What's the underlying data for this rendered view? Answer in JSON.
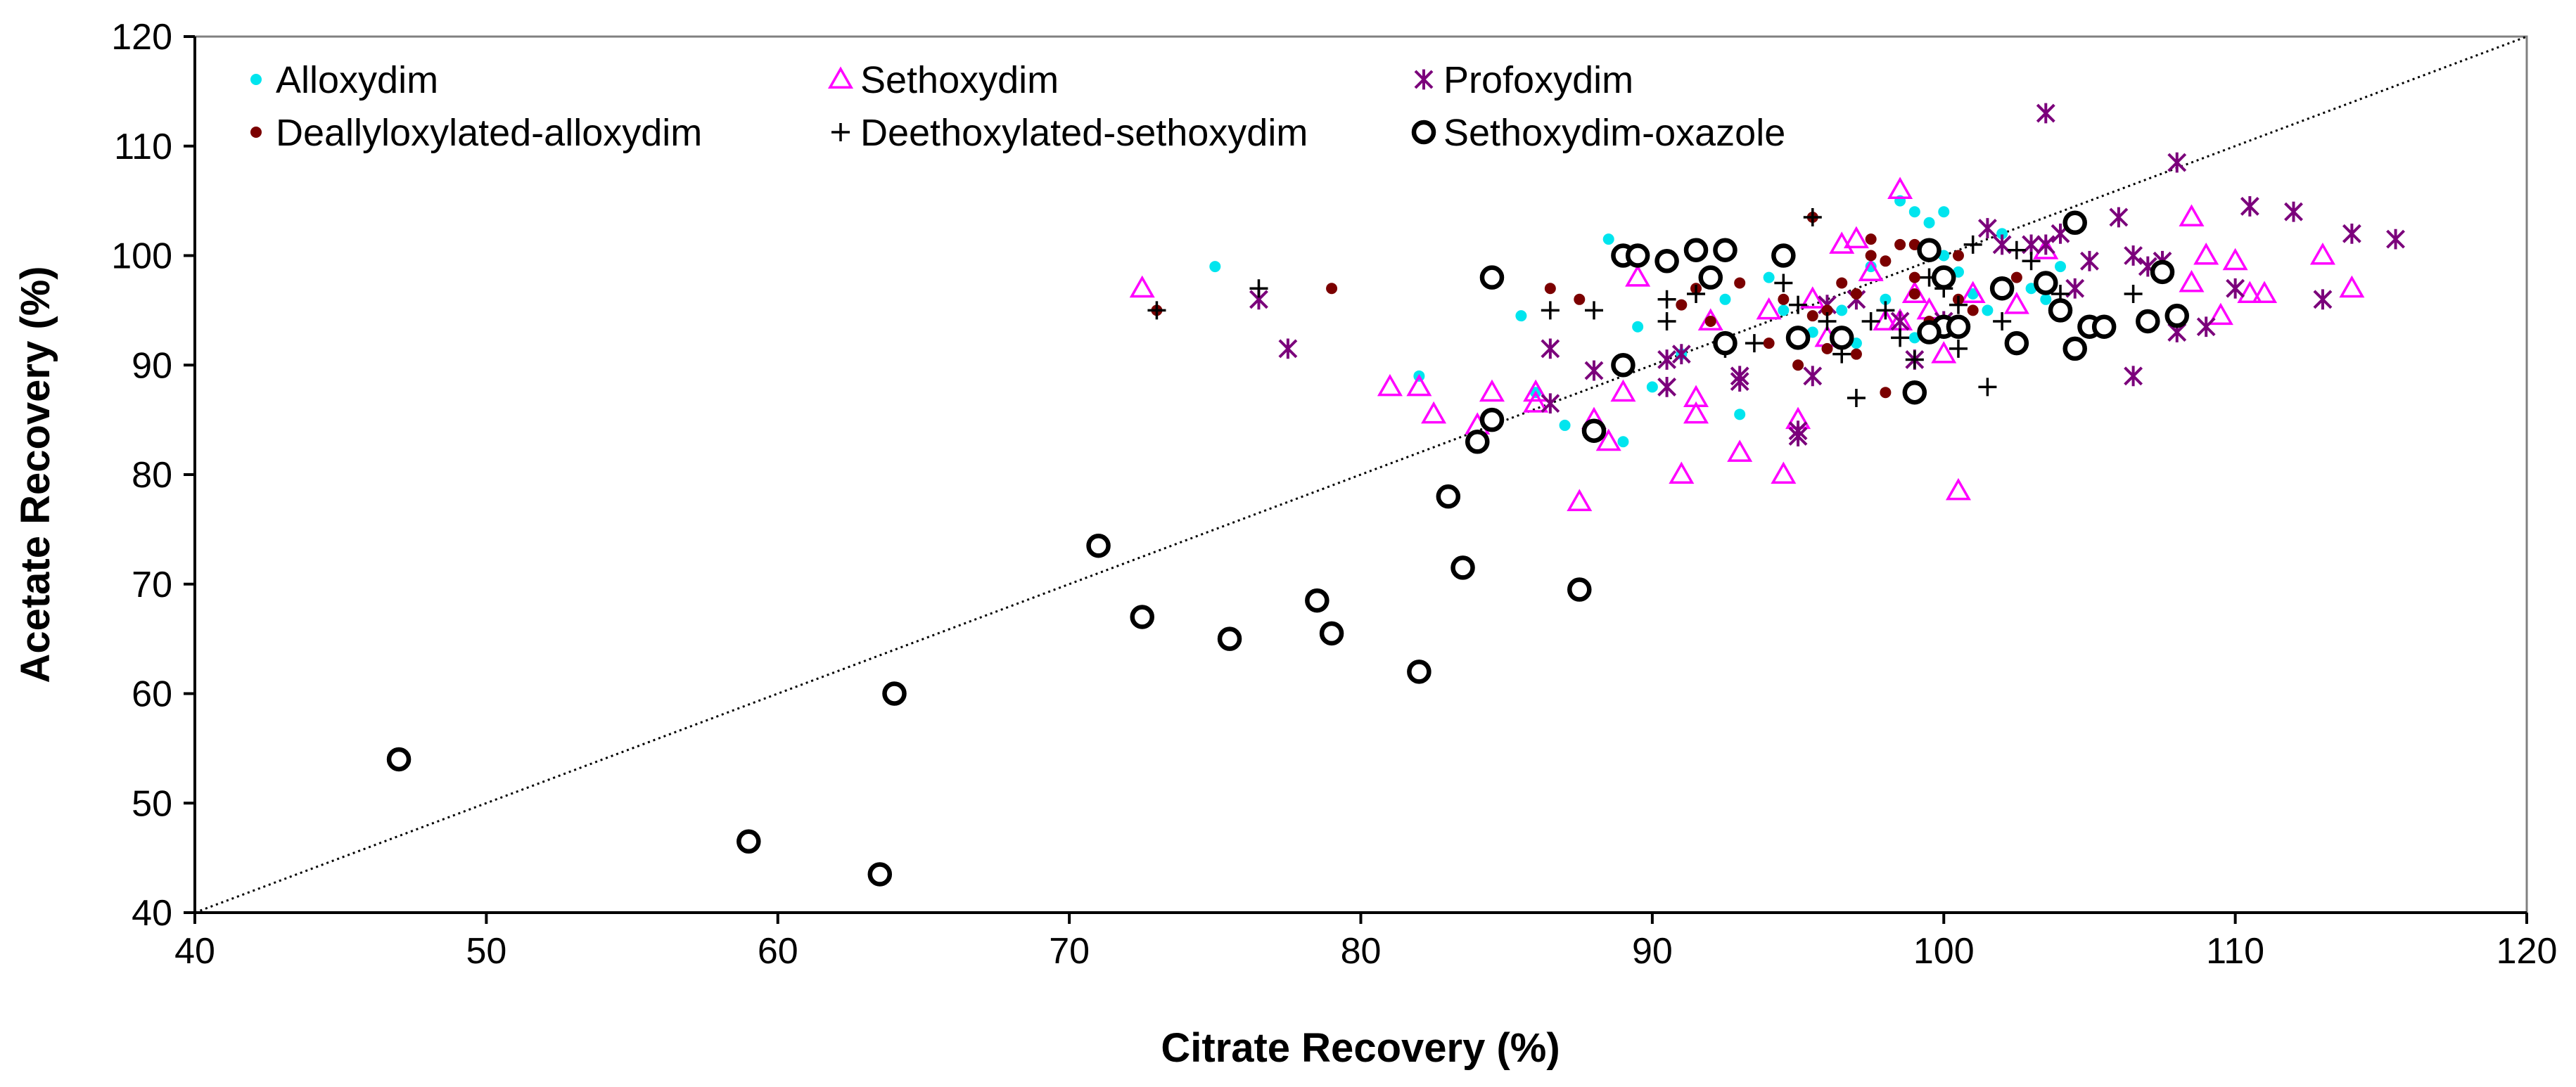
{
  "chart_data": {
    "type": "scatter",
    "xlabel": "Citrate Recovery (%)",
    "ylabel": "Acetate Recovery (%)",
    "xlim": [
      40,
      120
    ],
    "ylim": [
      40,
      120
    ],
    "xticks": [
      "40",
      "50",
      "60",
      "70",
      "80",
      "90",
      "100",
      "110",
      "120"
    ],
    "yticks": [
      "40",
      "50",
      "60",
      "70",
      "80",
      "90",
      "100",
      "110",
      "120"
    ],
    "reference_line": {
      "from": [
        40,
        40
      ],
      "to": [
        120,
        120
      ],
      "style": "dotted"
    },
    "legend_position": "top-left",
    "series": [
      {
        "name": "Alloxydim",
        "marker": "dot",
        "color": "#00e5ee",
        "points": [
          [
            75,
            99
          ],
          [
            82,
            89
          ],
          [
            85.5,
            94.5
          ],
          [
            86,
            87.5
          ],
          [
            87,
            84.5
          ],
          [
            88.5,
            101.5
          ],
          [
            89,
            83
          ],
          [
            89.5,
            93.5
          ],
          [
            91,
            91
          ],
          [
            92.5,
            96
          ],
          [
            93,
            85.5
          ],
          [
            94,
            98
          ],
          [
            95.5,
            93
          ],
          [
            96.5,
            95
          ],
          [
            97,
            92
          ],
          [
            98,
            96
          ],
          [
            98.5,
            105
          ],
          [
            99,
            104
          ],
          [
            99.5,
            103
          ],
          [
            100,
            104
          ],
          [
            100,
            100
          ],
          [
            100.5,
            98.5
          ],
          [
            101,
            96.5
          ],
          [
            101.5,
            95
          ],
          [
            102,
            102
          ],
          [
            103,
            97
          ],
          [
            103.5,
            96
          ],
          [
            104,
            99
          ],
          [
            97.5,
            99
          ],
          [
            90,
            88
          ],
          [
            94.5,
            95
          ],
          [
            99,
            92.5
          ]
        ]
      },
      {
        "name": "Sethoxydim",
        "marker": "triangle",
        "color": "#ff00ff",
        "points": [
          [
            72.5,
            97
          ],
          [
            81,
            88
          ],
          [
            82,
            88
          ],
          [
            82.5,
            85.5
          ],
          [
            84,
            84.5
          ],
          [
            84.5,
            87.5
          ],
          [
            86,
            87.5
          ],
          [
            87.5,
            77.5
          ],
          [
            88,
            85
          ],
          [
            88.5,
            83
          ],
          [
            89,
            87.5
          ],
          [
            89.5,
            98
          ],
          [
            91,
            80
          ],
          [
            91.5,
            87
          ],
          [
            91.5,
            85.5
          ],
          [
            93,
            82
          ],
          [
            94,
            95
          ],
          [
            94.5,
            80
          ],
          [
            95,
            85
          ],
          [
            95.5,
            96
          ],
          [
            96.5,
            101
          ],
          [
            97,
            101.5
          ],
          [
            97.5,
            98.5
          ],
          [
            98,
            94
          ],
          [
            98.5,
            94
          ],
          [
            98.5,
            106
          ],
          [
            99,
            96.5
          ],
          [
            99.5,
            95
          ],
          [
            100,
            91
          ],
          [
            100.5,
            78.5
          ],
          [
            101,
            96.5
          ],
          [
            102.5,
            95.5
          ],
          [
            103.5,
            100.5
          ],
          [
            108.5,
            103.5
          ],
          [
            108.5,
            97.5
          ],
          [
            109,
            100
          ],
          [
            109.5,
            94.5
          ],
          [
            110,
            99.5
          ],
          [
            111,
            96.5
          ],
          [
            113,
            100
          ],
          [
            114,
            97
          ],
          [
            110.5,
            96.5
          ],
          [
            86,
            86.5
          ],
          [
            96,
            92.5
          ],
          [
            92,
            94
          ]
        ]
      },
      {
        "name": "Profoxydim",
        "marker": "star",
        "color": "#7b007b",
        "points": [
          [
            76.5,
            96
          ],
          [
            77.5,
            91.5
          ],
          [
            86.5,
            86.5
          ],
          [
            86.5,
            91.5
          ],
          [
            90.5,
            88
          ],
          [
            90.5,
            90.5
          ],
          [
            93,
            89
          ],
          [
            93,
            88.5
          ],
          [
            95,
            83.5
          ],
          [
            95,
            84
          ],
          [
            95.5,
            89
          ],
          [
            97,
            96
          ],
          [
            98.5,
            94
          ],
          [
            99,
            90.5
          ],
          [
            100,
            94
          ],
          [
            101.5,
            102.5
          ],
          [
            102,
            101
          ],
          [
            103,
            101
          ],
          [
            103.5,
            113
          ],
          [
            103.5,
            101
          ],
          [
            104,
            102
          ],
          [
            104.5,
            97
          ],
          [
            105,
            99.5
          ],
          [
            106,
            103.5
          ],
          [
            106.5,
            100
          ],
          [
            106.5,
            89
          ],
          [
            107,
            99
          ],
          [
            107.5,
            99.5
          ],
          [
            108,
            108.5
          ],
          [
            108,
            93
          ],
          [
            109,
            93.5
          ],
          [
            110,
            97
          ],
          [
            110.5,
            104.5
          ],
          [
            112,
            104
          ],
          [
            113,
            96
          ],
          [
            114,
            102
          ],
          [
            115.5,
            101.5
          ],
          [
            88,
            89.5
          ],
          [
            91,
            91
          ],
          [
            96,
            95.5
          ]
        ]
      },
      {
        "name": "Deallyloxylated-alloxydim",
        "marker": "dot",
        "color": "#7b0000",
        "points": [
          [
            73,
            95
          ],
          [
            79,
            97
          ],
          [
            86.5,
            97
          ],
          [
            87.5,
            96
          ],
          [
            91,
            95.5
          ],
          [
            91.5,
            97
          ],
          [
            92,
            94
          ],
          [
            93,
            97.5
          ],
          [
            94,
            92
          ],
          [
            95,
            90
          ],
          [
            95.5,
            103.5
          ],
          [
            96,
            95
          ],
          [
            96.5,
            97.5
          ],
          [
            97,
            96.5
          ],
          [
            97.5,
            100
          ],
          [
            98,
            99.5
          ],
          [
            98.5,
            101
          ],
          [
            99,
            96.5
          ],
          [
            99.5,
            94
          ],
          [
            100,
            93
          ],
          [
            100.5,
            100
          ],
          [
            101,
            95
          ],
          [
            102.5,
            98
          ],
          [
            98,
            87.5
          ],
          [
            97,
            91
          ],
          [
            95.5,
            94.5
          ],
          [
            94.5,
            96
          ],
          [
            99,
            98
          ],
          [
            100.5,
            96
          ],
          [
            96,
            91.5
          ],
          [
            97.5,
            101.5
          ],
          [
            99,
            101
          ]
        ]
      },
      {
        "name": "Deethoxylated-sethoxydim",
        "marker": "plus",
        "color": "#000000",
        "points": [
          [
            73,
            95
          ],
          [
            76.5,
            97
          ],
          [
            86.5,
            95
          ],
          [
            88,
            95
          ],
          [
            90.5,
            96
          ],
          [
            91.5,
            96.5
          ],
          [
            92.5,
            91.5
          ],
          [
            93.5,
            92
          ],
          [
            95,
            95.5
          ],
          [
            95.5,
            103.5
          ],
          [
            96,
            94
          ],
          [
            96.5,
            91
          ],
          [
            97,
            87
          ],
          [
            98,
            95
          ],
          [
            98.5,
            92.5
          ],
          [
            99,
            90.5
          ],
          [
            99.5,
            98
          ],
          [
            100,
            97
          ],
          [
            100.5,
            95.5
          ],
          [
            101,
            101
          ],
          [
            101.5,
            88
          ],
          [
            102,
            94
          ],
          [
            103,
            99.5
          ],
          [
            104,
            96.5
          ],
          [
            106.5,
            96.5
          ],
          [
            94.5,
            97.5
          ],
          [
            100.5,
            91.5
          ],
          [
            102.5,
            100.5
          ],
          [
            97.5,
            94
          ],
          [
            90.5,
            94
          ]
        ]
      },
      {
        "name": "Sethoxydim-oxazole",
        "marker": "circle",
        "color": "#000000",
        "points": [
          [
            47,
            54
          ],
          [
            59,
            46.5
          ],
          [
            63.5,
            43.5
          ],
          [
            64,
            60
          ],
          [
            71,
            73.5
          ],
          [
            72.5,
            67
          ],
          [
            75.5,
            65
          ],
          [
            78.5,
            68.5
          ],
          [
            79,
            65.5
          ],
          [
            82,
            62
          ],
          [
            83,
            78
          ],
          [
            83.5,
            71.5
          ],
          [
            84,
            83
          ],
          [
            84.5,
            85
          ],
          [
            84.5,
            98
          ],
          [
            87.5,
            69.5
          ],
          [
            88,
            84
          ],
          [
            89,
            90
          ],
          [
            89,
            100
          ],
          [
            89.5,
            100
          ],
          [
            90.5,
            99.5
          ],
          [
            91.5,
            100.5
          ],
          [
            92,
            98
          ],
          [
            92.5,
            100.5
          ],
          [
            92.5,
            92
          ],
          [
            94.5,
            100
          ],
          [
            95,
            92.5
          ],
          [
            96.5,
            92.5
          ],
          [
            99,
            87.5
          ],
          [
            99.5,
            100.5
          ],
          [
            100,
            98
          ],
          [
            100,
            93.5
          ],
          [
            100.5,
            93.5
          ],
          [
            102,
            97
          ],
          [
            102.5,
            92
          ],
          [
            103.5,
            97.5
          ],
          [
            104,
            95
          ],
          [
            104.5,
            103
          ],
          [
            104.5,
            91.5
          ],
          [
            105,
            93.5
          ],
          [
            105.5,
            93.5
          ],
          [
            107,
            94
          ],
          [
            107.5,
            98.5
          ],
          [
            108,
            94.5
          ],
          [
            99.5,
            93
          ]
        ]
      }
    ]
  }
}
